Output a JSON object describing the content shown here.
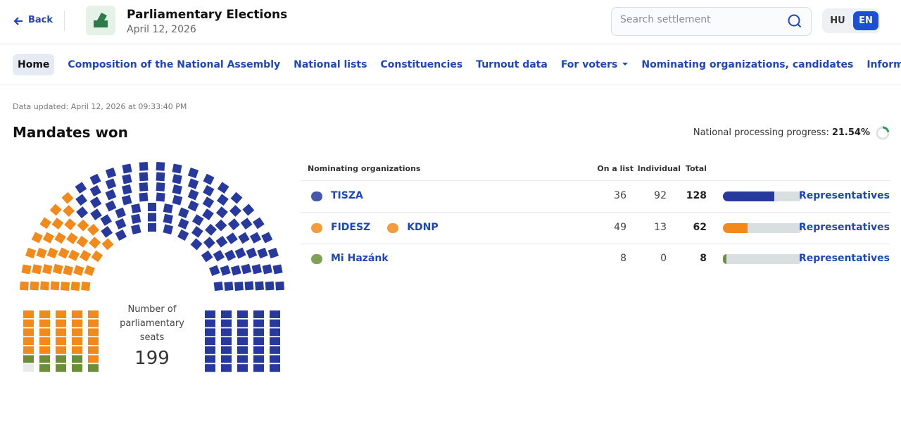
{
  "header": {
    "back": "Back",
    "title": "Parliamentary Elections",
    "date": "April 12, 2026",
    "search_placeholder": "Search settlement",
    "languages": [
      {
        "label": "HU",
        "active": false
      },
      {
        "label": "EN",
        "active": true
      }
    ]
  },
  "nav": [
    {
      "label": "Home",
      "active": true
    },
    {
      "label": "Composition of the National Assembly"
    },
    {
      "label": "National lists"
    },
    {
      "label": "Constituencies"
    },
    {
      "label": "Turnout data"
    },
    {
      "label": "For voters",
      "dropdown": true
    },
    {
      "label": "Nominating organizations, candidates"
    },
    {
      "label": "Information",
      "dropdown": true
    }
  ],
  "updated": "Data updated: April 12, 2026 at 09:33:40 PM",
  "section_title": "Mandates won",
  "progress": {
    "label": "National processing progress:",
    "value": 21.54,
    "value_label": "21.54%"
  },
  "seats": {
    "label": "Number of parliamentary seats",
    "total": 199
  },
  "table": {
    "headers": [
      "Nominating organizations",
      "On a list",
      "Individual",
      "Total"
    ],
    "rows": [
      {
        "parties": [
          "TISZA"
        ],
        "on_list": 36,
        "individual": 92,
        "total": 128,
        "color": "#27399c",
        "link": "Representatives"
      },
      {
        "parties": [
          "FIDESZ",
          "KDNP"
        ],
        "on_list": 49,
        "individual": 13,
        "total": 62,
        "color": "#f28a1b",
        "link": "Representatives"
      },
      {
        "parties": [
          "Mi Hazánk"
        ],
        "on_list": 8,
        "individual": 0,
        "total": 8,
        "color": "#6a8f38",
        "link": "Representatives"
      }
    ]
  }
}
